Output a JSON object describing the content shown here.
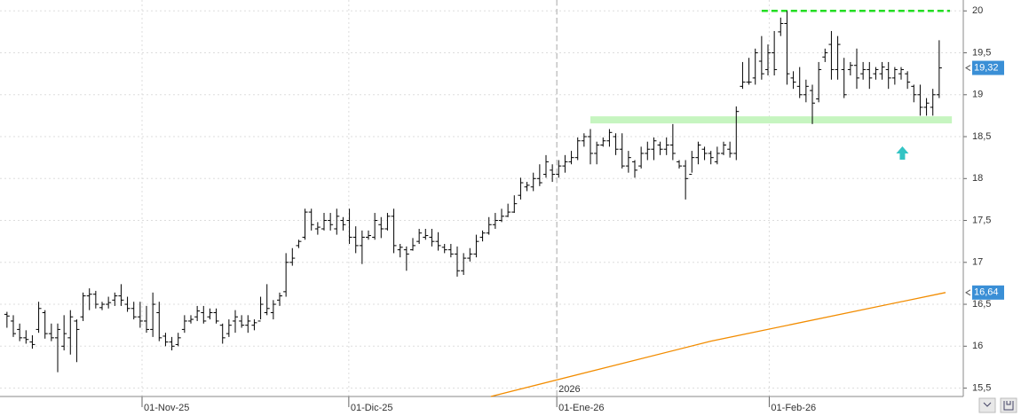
{
  "chart_data": {
    "type": "ohlc",
    "color": "#000000",
    "ohlc": [
      [
        16.38,
        16.41,
        16.22,
        16.36
      ],
      [
        16.3,
        16.37,
        16.11,
        16.15
      ],
      [
        16.2,
        16.27,
        16.06,
        16.1
      ],
      [
        16.1,
        16.19,
        16.03,
        16.08
      ],
      [
        16.05,
        16.13,
        15.97,
        16.02
      ],
      [
        16.2,
        16.53,
        16.16,
        16.45
      ],
      [
        16.4,
        16.43,
        16.09,
        16.15
      ],
      [
        16.15,
        16.27,
        16.06,
        16.1
      ],
      [
        16.1,
        16.27,
        15.69,
        16.2
      ],
      [
        16.0,
        16.37,
        15.95,
        16.15
      ],
      [
        16.1,
        16.43,
        15.9,
        16.35
      ],
      [
        16.3,
        16.32,
        15.81,
        16.2
      ],
      [
        16.35,
        16.64,
        16.3,
        16.6
      ],
      [
        16.6,
        16.69,
        16.43,
        16.62
      ],
      [
        16.62,
        16.66,
        16.45,
        16.5
      ],
      [
        16.46,
        16.53,
        16.43,
        16.5
      ],
      [
        16.5,
        16.59,
        16.45,
        16.52
      ],
      [
        16.55,
        16.64,
        16.48,
        16.6
      ],
      [
        16.6,
        16.74,
        16.48,
        16.55
      ],
      [
        16.5,
        16.59,
        16.41,
        16.45
      ],
      [
        16.45,
        16.53,
        16.32,
        16.35
      ],
      [
        16.35,
        16.53,
        16.22,
        16.3
      ],
      [
        16.3,
        16.48,
        16.16,
        16.2
      ],
      [
        16.2,
        16.64,
        16.11,
        16.5
      ],
      [
        16.4,
        16.53,
        16.06,
        16.1
      ],
      [
        16.12,
        16.16,
        16.0,
        16.05
      ],
      [
        16.05,
        16.11,
        15.95,
        16.0
      ],
      [
        16.02,
        16.16,
        16.0,
        16.1
      ],
      [
        16.2,
        16.37,
        16.16,
        16.3
      ],
      [
        16.3,
        16.37,
        16.27,
        16.32
      ],
      [
        16.35,
        16.48,
        16.3,
        16.42
      ],
      [
        16.4,
        16.48,
        16.27,
        16.3
      ],
      [
        16.35,
        16.45,
        16.32,
        16.4
      ],
      [
        16.4,
        16.45,
        16.27,
        16.3
      ],
      [
        16.25,
        16.27,
        16.03,
        16.1
      ],
      [
        16.15,
        16.32,
        16.11,
        16.25
      ],
      [
        16.3,
        16.43,
        16.16,
        16.35
      ],
      [
        16.3,
        16.37,
        16.22,
        16.25
      ],
      [
        16.25,
        16.37,
        16.16,
        16.3
      ],
      [
        16.25,
        16.32,
        16.19,
        16.28
      ],
      [
        16.3,
        16.59,
        16.32,
        16.5
      ],
      [
        16.4,
        16.74,
        16.37,
        16.45
      ],
      [
        16.4,
        16.55,
        16.32,
        16.5
      ],
      [
        16.55,
        16.64,
        16.48,
        16.6
      ],
      [
        16.65,
        17.11,
        16.59,
        17.0
      ],
      [
        17.0,
        17.17,
        16.96,
        17.05
      ],
      [
        17.2,
        17.27,
        17.17,
        17.25
      ],
      [
        17.3,
        17.64,
        17.27,
        17.6
      ],
      [
        17.6,
        17.64,
        17.38,
        17.45
      ],
      [
        17.4,
        17.48,
        17.33,
        17.42
      ],
      [
        17.4,
        17.59,
        17.38,
        17.5
      ],
      [
        17.5,
        17.59,
        17.38,
        17.45
      ],
      [
        17.4,
        17.64,
        17.33,
        17.55
      ],
      [
        17.5,
        17.54,
        17.38,
        17.45
      ],
      [
        17.5,
        17.64,
        17.22,
        17.3
      ],
      [
        17.3,
        17.43,
        17.11,
        17.2
      ],
      [
        17.2,
        17.38,
        16.98,
        17.3
      ],
      [
        17.3,
        17.38,
        17.27,
        17.32
      ],
      [
        17.3,
        17.59,
        17.27,
        17.5
      ],
      [
        17.45,
        17.54,
        17.29,
        17.4
      ],
      [
        17.4,
        17.59,
        17.38,
        17.55
      ],
      [
        17.55,
        17.64,
        17.11,
        17.2
      ],
      [
        17.15,
        17.22,
        17.06,
        17.18
      ],
      [
        17.15,
        17.19,
        16.9,
        17.1
      ],
      [
        17.15,
        17.29,
        17.14,
        17.2
      ],
      [
        17.25,
        17.4,
        17.22,
        17.35
      ],
      [
        17.3,
        17.4,
        17.27,
        17.32
      ],
      [
        17.3,
        17.4,
        17.19,
        17.25
      ],
      [
        17.25,
        17.36,
        17.14,
        17.2
      ],
      [
        17.18,
        17.22,
        17.11,
        17.15
      ],
      [
        17.15,
        17.22,
        17.06,
        17.1
      ],
      [
        17.1,
        17.19,
        16.83,
        16.9
      ],
      [
        16.9,
        17.11,
        16.85,
        17.05
      ],
      [
        17.05,
        17.17,
        17.01,
        17.1
      ],
      [
        17.1,
        17.33,
        17.06,
        17.25
      ],
      [
        17.3,
        17.38,
        17.25,
        17.35
      ],
      [
        17.35,
        17.54,
        17.33,
        17.45
      ],
      [
        17.45,
        17.59,
        17.4,
        17.5
      ],
      [
        17.5,
        17.64,
        17.48,
        17.55
      ],
      [
        17.55,
        17.7,
        17.54,
        17.6
      ],
      [
        17.6,
        17.8,
        17.59,
        17.7
      ],
      [
        17.8,
        18.01,
        17.75,
        17.95
      ],
      [
        17.9,
        17.96,
        17.85,
        17.92
      ],
      [
        17.9,
        18.07,
        17.85,
        18.0
      ],
      [
        18.0,
        18.17,
        17.91,
        17.95
      ],
      [
        18.05,
        18.28,
        18.01,
        18.2
      ],
      [
        18.1,
        18.17,
        17.96,
        18.05
      ],
      [
        18.05,
        18.22,
        18.01,
        18.15
      ],
      [
        18.15,
        18.28,
        18.07,
        18.2
      ],
      [
        18.2,
        18.33,
        18.17,
        18.25
      ],
      [
        18.25,
        18.49,
        18.22,
        18.45
      ],
      [
        18.45,
        18.54,
        18.38,
        18.5
      ],
      [
        18.5,
        18.59,
        18.17,
        18.3
      ],
      [
        18.3,
        18.44,
        18.17,
        18.4
      ],
      [
        18.4,
        18.49,
        18.38,
        18.45
      ],
      [
        18.45,
        18.59,
        18.38,
        18.55
      ],
      [
        18.5,
        18.54,
        18.28,
        18.35
      ],
      [
        18.35,
        18.54,
        18.12,
        18.15
      ],
      [
        18.15,
        18.33,
        18.07,
        18.25
      ],
      [
        18.2,
        18.22,
        18.01,
        18.1
      ],
      [
        18.15,
        18.38,
        18.12,
        18.3
      ],
      [
        18.3,
        18.44,
        18.22,
        18.35
      ],
      [
        18.35,
        18.49,
        18.22,
        18.45
      ],
      [
        18.4,
        18.44,
        18.28,
        18.35
      ],
      [
        18.35,
        18.49,
        18.28,
        18.4
      ],
      [
        18.4,
        18.65,
        18.22,
        18.3
      ],
      [
        18.2,
        18.22,
        18.12,
        18.15
      ],
      [
        18.15,
        18.22,
        17.75,
        18.0
      ],
      [
        18.05,
        18.33,
        18.07,
        18.25
      ],
      [
        18.25,
        18.44,
        18.17,
        18.4
      ],
      [
        18.35,
        18.38,
        18.22,
        18.3
      ],
      [
        18.3,
        18.33,
        18.17,
        18.25
      ],
      [
        18.2,
        18.38,
        18.17,
        18.3
      ],
      [
        18.3,
        18.44,
        18.28,
        18.4
      ],
      [
        18.35,
        18.44,
        18.25,
        18.3
      ],
      [
        18.3,
        18.86,
        18.22,
        18.8
      ],
      [
        19.1,
        19.39,
        19.07,
        19.15
      ],
      [
        19.15,
        19.44,
        19.12,
        19.15
      ],
      [
        19.2,
        19.55,
        19.12,
        19.5
      ],
      [
        19.4,
        19.7,
        19.18,
        19.25
      ],
      [
        19.3,
        19.6,
        19.23,
        19.5
      ],
      [
        19.5,
        19.76,
        19.23,
        19.3
      ],
      [
        19.75,
        19.92,
        19.7,
        19.85
      ],
      [
        19.85,
        20.0,
        19.12,
        19.25
      ],
      [
        19.2,
        19.28,
        19.07,
        19.15
      ],
      [
        19.1,
        19.33,
        18.96,
        19.0
      ],
      [
        19.0,
        19.18,
        18.91,
        19.1
      ],
      [
        19.05,
        19.12,
        18.65,
        18.9
      ],
      [
        18.95,
        19.39,
        18.91,
        19.3
      ],
      [
        19.45,
        19.55,
        19.39,
        19.5
      ],
      [
        19.6,
        19.76,
        19.18,
        19.3
      ],
      [
        19.3,
        19.7,
        19.18,
        19.6
      ],
      [
        19.3,
        19.44,
        18.96,
        19.0
      ],
      [
        19.3,
        19.39,
        19.23,
        19.35
      ],
      [
        19.35,
        19.55,
        19.07,
        19.2
      ],
      [
        19.25,
        19.39,
        19.18,
        19.3
      ],
      [
        19.3,
        19.39,
        19.07,
        19.2
      ],
      [
        19.25,
        19.33,
        19.18,
        19.3
      ],
      [
        19.25,
        19.39,
        19.18,
        19.33
      ],
      [
        19.3,
        19.39,
        19.07,
        19.2
      ],
      [
        19.2,
        19.33,
        19.12,
        19.3
      ],
      [
        19.25,
        19.33,
        19.18,
        19.3
      ],
      [
        19.25,
        19.28,
        19.07,
        19.15
      ],
      [
        19.1,
        19.12,
        18.91,
        19.0
      ],
      [
        19.0,
        19.12,
        18.75,
        18.85
      ],
      [
        18.85,
        18.96,
        18.75,
        18.9
      ],
      [
        18.85,
        19.07,
        18.75,
        19.0
      ],
      [
        19.0,
        19.65,
        18.96,
        19.32
      ]
    ],
    "last_price": {
      "value": 19.32,
      "label": "19,32"
    },
    "ma": {
      "color": "#f28c00",
      "x": [
        76.3,
        111,
        148
      ],
      "values": [
        15.4,
        16.06,
        16.64
      ],
      "value_label": "16,64"
    },
    "year_marker": {
      "value": 86.7,
      "label": "2026"
    },
    "resistance": {
      "value": 20,
      "x": [
        119,
        148.7
      ],
      "color": "#22dd22"
    },
    "support": {
      "value": 18.7,
      "x": [
        92,
        149
      ],
      "color": "#c6f5c0"
    },
    "arrow": {
      "x": 141.2,
      "value": 18.3,
      "color": "#33c4c4"
    },
    "ylim": [
      15.4,
      20.13
    ],
    "yticks": [
      {
        "value": 15.5,
        "label": "15,5"
      },
      16,
      {
        "value": 16.5,
        "label": "16,5"
      },
      17,
      {
        "value": 17.5,
        "label": "17,5"
      },
      18,
      {
        "value": 18.5,
        "label": "18,5"
      },
      19,
      {
        "value": 19.5,
        "label": "19,5"
      },
      20
    ],
    "xlim": [
      -1.1,
      150.8
    ],
    "xticks": [
      {
        "value": 21.3,
        "label": "01-Nov-25"
      },
      {
        "value": 53.9,
        "label": "01-Dic-25"
      },
      {
        "value": 86.7,
        "label": "01-Ene-26"
      },
      {
        "value": 120.2,
        "label": "01-Feb-26"
      }
    ],
    "grid": true
  }
}
